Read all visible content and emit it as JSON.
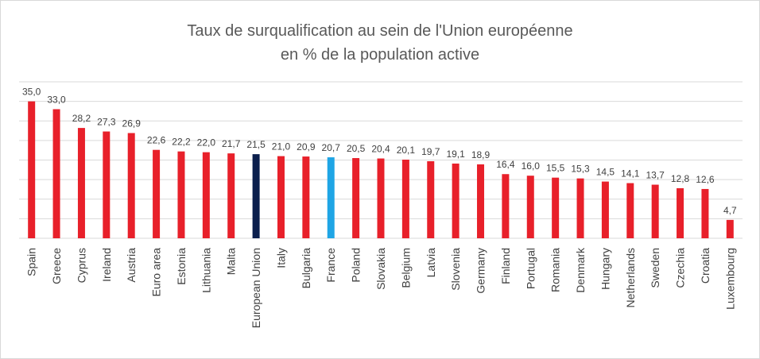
{
  "chart_data": {
    "type": "bar",
    "title_line1": "Taux de surqualification au sein de l'Union européenne",
    "title_line2": "en % de la population active",
    "categories": [
      "Spain",
      "Greece",
      "Cyprus",
      "Ireland",
      "Austria",
      "Euro area",
      "Estonia",
      "Lithuania",
      "Malta",
      "European Union",
      "Italy",
      "Bulgaria",
      "France",
      "Poland",
      "Slovakia",
      "Belgium",
      "Latvia",
      "Slovenia",
      "Germany",
      "Finland",
      "Portugal",
      "Romania",
      "Denmark",
      "Hungary",
      "Netherlands",
      "Sweden",
      "Czechia",
      "Croatia",
      "Luxembourg"
    ],
    "values": [
      35.0,
      33.0,
      28.2,
      27.3,
      26.9,
      22.6,
      22.2,
      22.0,
      21.7,
      21.5,
      21.0,
      20.9,
      20.7,
      20.5,
      20.4,
      20.1,
      19.7,
      19.1,
      18.9,
      16.4,
      16.0,
      15.5,
      15.3,
      14.5,
      14.1,
      13.7,
      12.8,
      12.6,
      4.7
    ],
    "value_labels": [
      "35,0",
      "33,0",
      "28,2",
      "27,3",
      "26,9",
      "22,6",
      "22,2",
      "22,0",
      "21,7",
      "21,5",
      "21,0",
      "20,9",
      "20,7",
      "20,5",
      "20,4",
      "20,1",
      "19,7",
      "19,1",
      "18,9",
      "16,4",
      "16,0",
      "15,5",
      "15,3",
      "14,5",
      "14,1",
      "13,7",
      "12,8",
      "12,6",
      "4,7"
    ],
    "ylim": [
      0,
      40
    ],
    "grid": true,
    "colors": {
      "default": "#e8202a",
      "European Union": "#0b1f4d",
      "France": "#1fa5e5",
      "grid": "#d9d9d9"
    }
  }
}
